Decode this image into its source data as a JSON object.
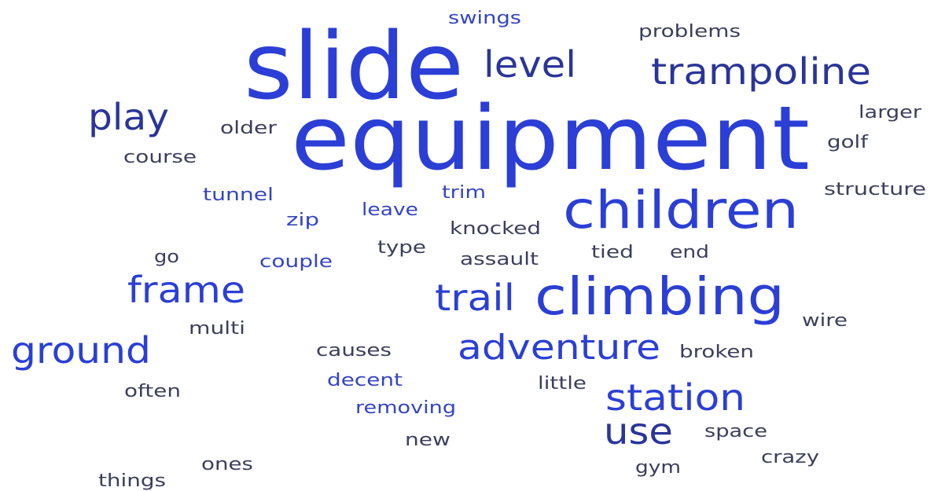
{
  "words": [
    "slide",
    "equipment",
    "level",
    "trampoline",
    "swings",
    "problems",
    "play",
    "older",
    "larger",
    "golf",
    "course",
    "children",
    "tunnel",
    "trim",
    "structure",
    "leave",
    "zip",
    "knocked",
    "type",
    "go",
    "couple",
    "assault",
    "tied",
    "end",
    "frame",
    "trail",
    "climbing",
    "wire",
    "multi",
    "ground",
    "causes",
    "adventure",
    "broken",
    "decent",
    "little",
    "often",
    "station",
    "removing",
    "use",
    "space",
    "new",
    "crazy",
    "ones",
    "gym",
    "things"
  ]
}
